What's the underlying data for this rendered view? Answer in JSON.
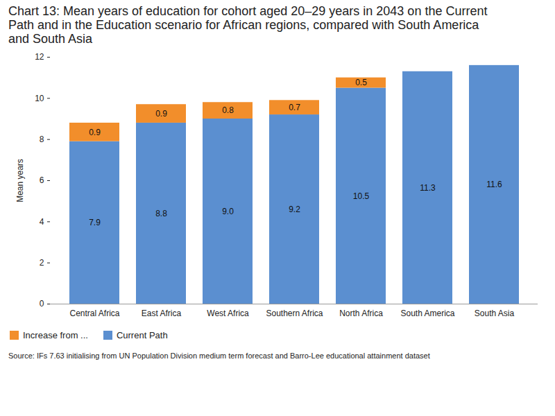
{
  "chart_data": {
    "type": "bar",
    "title": "Chart 13: Mean years of education for cohort aged 20–29 years in 2043 on the Current Path and in the Education scenario for African regions, compared with South America and South Asia",
    "y_label": "Mean years",
    "source": "Source: IFs 7.63 initialising from UN Population Division medium term forecast and Barro-Lee educational attainment dataset",
    "categories": [
      "Central Africa",
      "East Africa",
      "West Africa",
      "Southern Africa",
      "North Africa",
      "South America",
      "South Asia"
    ],
    "series": [
      {
        "name": "Current Path",
        "color": "#5b8fd0",
        "values": [
          7.9,
          8.8,
          9.0,
          9.2,
          10.5,
          11.3,
          11.6
        ],
        "value_labels": [
          "7.9",
          "8.8",
          "9.0",
          "9.2",
          "10.5",
          "11.3",
          "11.6"
        ]
      },
      {
        "name": "Increase from ...",
        "color": "#f28e2b",
        "values": [
          0.9,
          0.9,
          0.8,
          0.7,
          0.5,
          null,
          null
        ]
      }
    ],
    "stacked": true,
    "data_labels": true,
    "ylim": [
      0,
      12
    ],
    "yticks": [
      0,
      2,
      4,
      6,
      8,
      10,
      12
    ],
    "grid": false,
    "legend": "bottom"
  }
}
